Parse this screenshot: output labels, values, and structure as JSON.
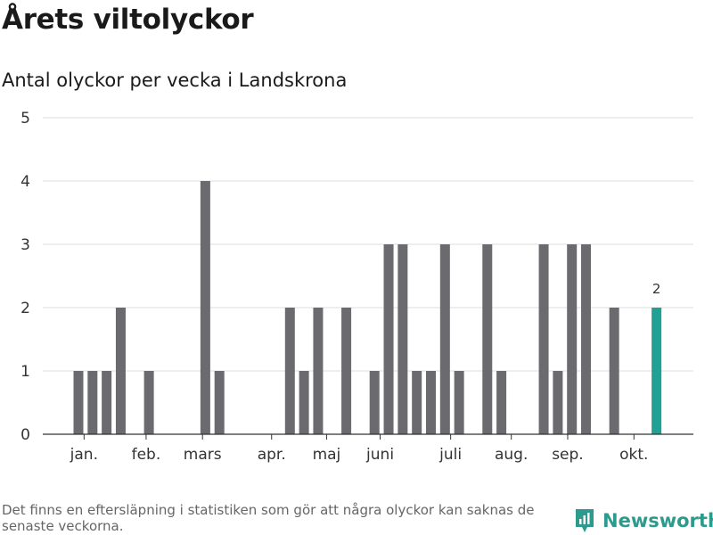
{
  "title": "Årets viltolyckor",
  "subtitle": "Antal olyckor per vecka i Landskrona",
  "footnote": "Det finns en eftersläpning i statistiken som gör att några olyckor kan saknas de senaste veckorna.",
  "brand": {
    "name": "Newsworthy",
    "icon": "newsworthy-logo-icon",
    "color": "#2c9a8c"
  },
  "colors": {
    "bar": "#6b6a6f",
    "highlight": "#21a096",
    "grid": "#dddddd",
    "axis": "#333333"
  },
  "chart_data": {
    "type": "bar",
    "title": "Antal olyckor per vecka i Landskrona",
    "xlabel": "",
    "ylabel": "",
    "ylim": [
      0,
      5
    ],
    "yticks": [
      0,
      1,
      2,
      3,
      4,
      5
    ],
    "grid": true,
    "weeks": [
      1,
      2,
      3,
      4,
      5,
      6,
      7,
      8,
      9,
      10,
      11,
      12,
      13,
      14,
      15,
      16,
      17,
      18,
      19,
      20,
      21,
      22,
      23,
      24,
      25,
      26,
      27,
      28,
      29,
      30,
      31,
      32,
      33,
      34,
      35,
      36,
      37,
      38,
      39,
      40,
      41,
      42,
      43
    ],
    "values": [
      1,
      1,
      1,
      2,
      0,
      1,
      0,
      0,
      0,
      4,
      1,
      0,
      0,
      0,
      0,
      2,
      1,
      2,
      0,
      2,
      0,
      1,
      3,
      3,
      1,
      1,
      3,
      1,
      0,
      3,
      1,
      0,
      0,
      3,
      1,
      3,
      3,
      0,
      2,
      0,
      0,
      2,
      0
    ],
    "highlight_week": 42,
    "highlight_label": "2",
    "month_labels": [
      {
        "label": "jan.",
        "week": 1.4
      },
      {
        "label": "feb.",
        "week": 5.8
      },
      {
        "label": "mars",
        "week": 9.8
      },
      {
        "label": "apr.",
        "week": 14.7
      },
      {
        "label": "maj",
        "week": 18.6
      },
      {
        "label": "juni",
        "week": 22.4
      },
      {
        "label": "juli",
        "week": 27.4
      },
      {
        "label": "aug.",
        "week": 31.7
      },
      {
        "label": "sep.",
        "week": 35.7
      },
      {
        "label": "okt.",
        "week": 40.4
      }
    ]
  }
}
